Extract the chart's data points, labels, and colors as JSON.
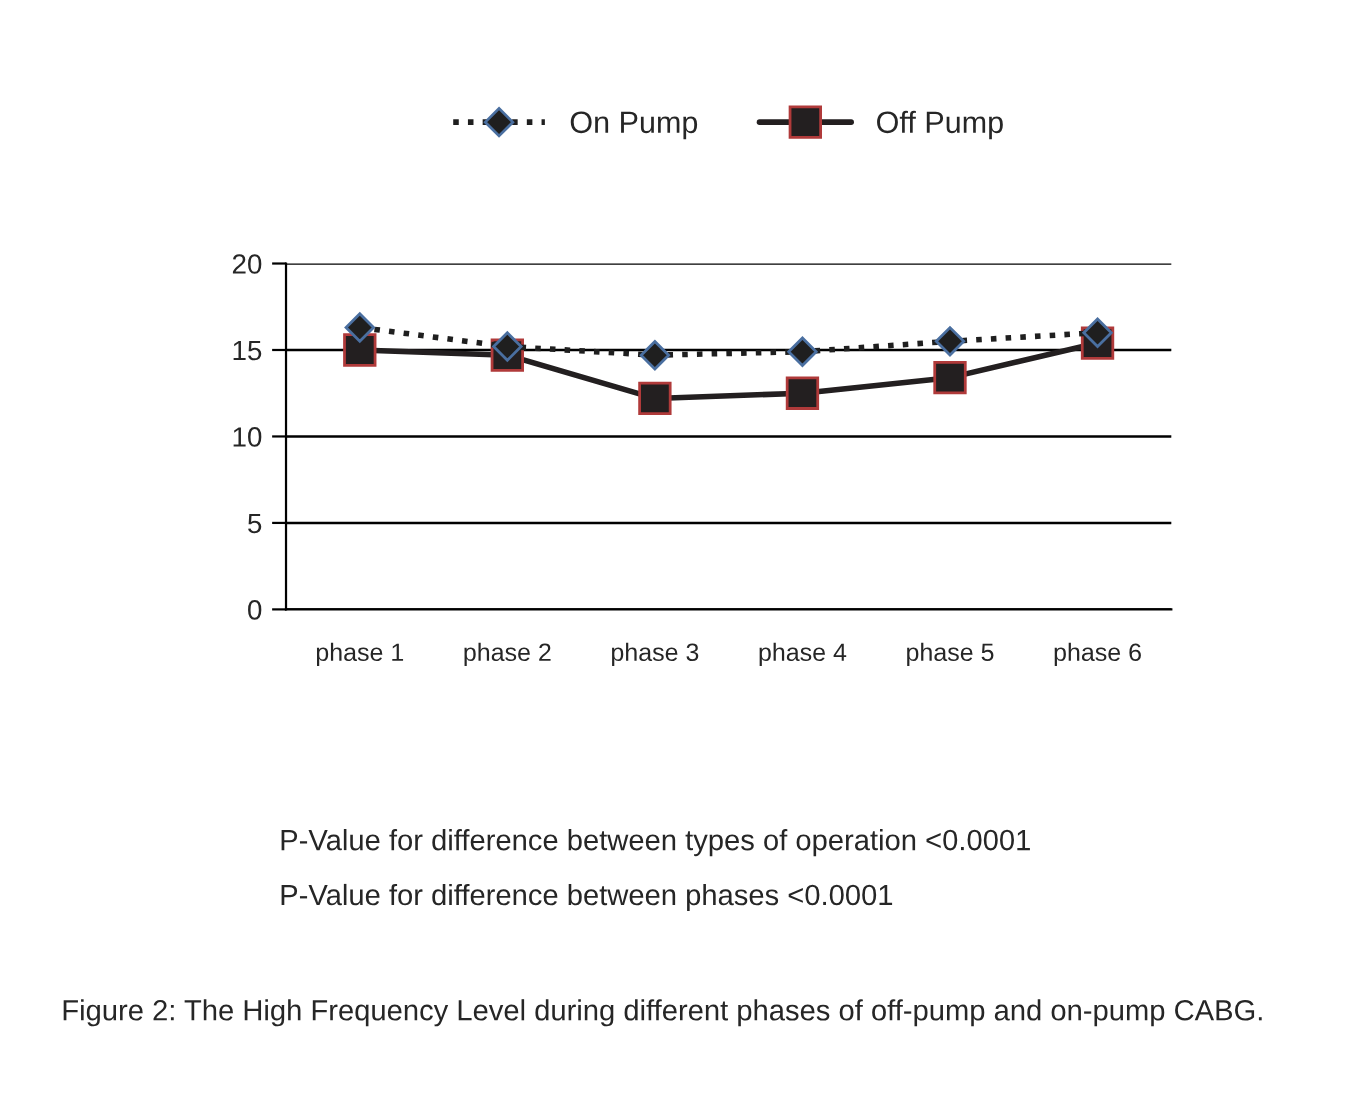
{
  "chart_data": {
    "type": "line",
    "categories": [
      "phase 1",
      "phase 2",
      "phase 3",
      "phase 4",
      "phase 5",
      "phase 6"
    ],
    "series": [
      {
        "name": "On Pump",
        "color": "#1f1f1f",
        "values": [
          16.3,
          15.2,
          14.7,
          14.9,
          15.5,
          16.0
        ],
        "marker": "diamond",
        "line_style": "dotted"
      },
      {
        "name": "Off Pump",
        "color": "#231f20",
        "values": [
          15.0,
          14.7,
          12.2,
          12.5,
          13.4,
          15.4
        ],
        "marker": "square",
        "line_style": "solid"
      }
    ],
    "ylim": [
      0,
      20
    ],
    "yticks": [
      0,
      5,
      10,
      15,
      20
    ],
    "grid": "y",
    "legend": "top",
    "annotations": [
      "P-Value for difference between types of operation <0.0001",
      "P-Value for difference between phases <0.0001",
      "Figure 2: The High Frequency Level during different phases of off-pump and on-pump CABG."
    ]
  }
}
